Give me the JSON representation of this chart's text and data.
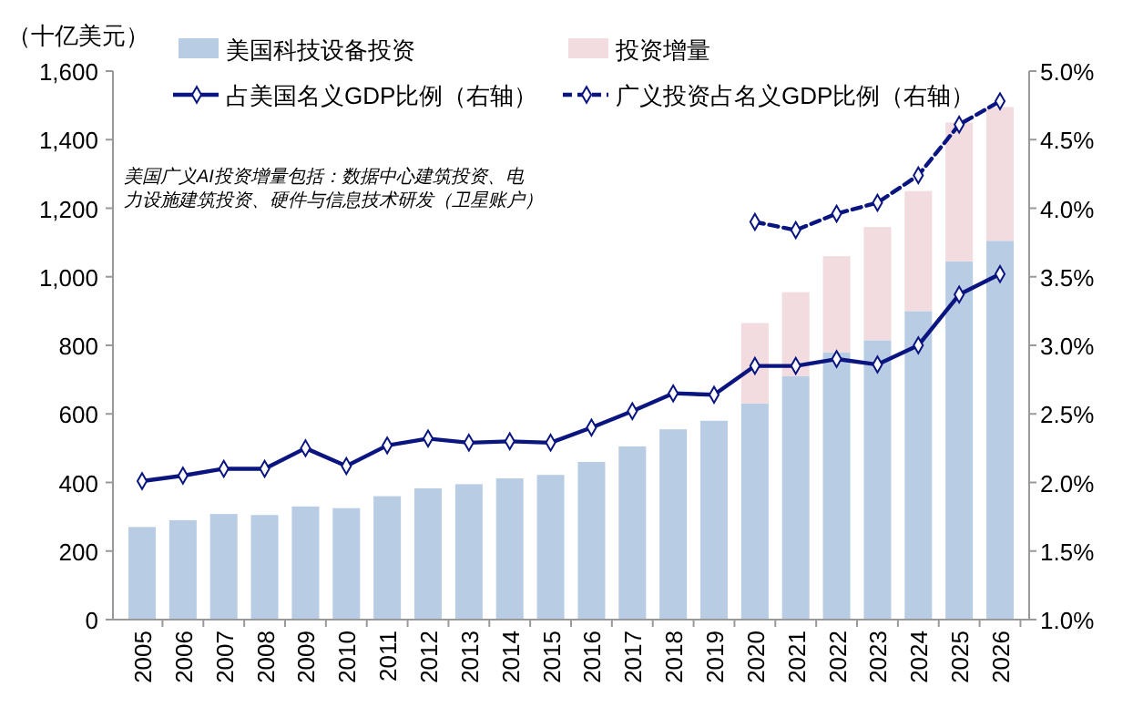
{
  "chart_data": {
    "type": "bar",
    "stacked": true,
    "ylabel": "（十亿美元）",
    "categories": [
      "2005",
      "2006",
      "2007",
      "2008",
      "2009",
      "2010",
      "2011",
      "2012",
      "2013",
      "2014",
      "2015",
      "2016",
      "2017",
      "2018",
      "2019",
      "2020",
      "2021",
      "2022",
      "2023",
      "2024",
      "2025",
      "2026"
    ],
    "series": [
      {
        "name": "美国科技设备投资",
        "color": "#b8cde4",
        "values": [
          270,
          290,
          308,
          305,
          330,
          325,
          360,
          383,
          395,
          412,
          422,
          460,
          505,
          555,
          580,
          630,
          710,
          780,
          815,
          900,
          1045,
          1105
        ]
      },
      {
        "name": "投资增量",
        "color": "#f2dcdf",
        "values": [
          null,
          null,
          null,
          null,
          null,
          null,
          null,
          null,
          null,
          null,
          null,
          null,
          null,
          null,
          null,
          235,
          245,
          280,
          330,
          350,
          405,
          390
        ]
      },
      {
        "name": "占美国名义GDP比例（右轴）",
        "type": "line",
        "axis": "y2",
        "color": "#0a1580",
        "line_style": "solid",
        "values": [
          2.01,
          2.05,
          2.1,
          2.1,
          2.25,
          2.12,
          2.27,
          2.32,
          2.29,
          2.3,
          2.29,
          2.4,
          2.52,
          2.65,
          2.64,
          2.85,
          2.85,
          2.9,
          2.86,
          3.0,
          3.37,
          3.52
        ]
      },
      {
        "name": "广义投资占名义GDP比例（右轴）",
        "type": "line",
        "axis": "y2",
        "color": "#0a1580",
        "line_style": "dashed",
        "values": [
          null,
          null,
          null,
          null,
          null,
          null,
          null,
          null,
          null,
          null,
          null,
          null,
          null,
          null,
          null,
          3.9,
          3.84,
          3.96,
          4.04,
          4.24,
          4.61,
          4.78
        ]
      }
    ],
    "ylim": [
      0,
      1600
    ],
    "yticks": [
      0,
      {
        "value": 200,
        "label": "200"
      },
      {
        "value": 400,
        "label": "400"
      },
      {
        "value": 600,
        "label": "600"
      },
      {
        "value": 800,
        "label": "800"
      },
      {
        "value": 1000,
        "label": "1,000"
      },
      {
        "value": 1200,
        "label": "1,200"
      },
      {
        "value": 1400,
        "label": "1,400"
      },
      {
        "value": 1600,
        "label": "1,600"
      }
    ],
    "y2lim": [
      1,
      5
    ],
    "y2ticks": [
      {
        "value": 1,
        "label": "1.0%"
      },
      {
        "value": 1.5,
        "label": "1.5%"
      },
      {
        "value": 2,
        "label": "2.0%"
      },
      {
        "value": 2.5,
        "label": "2.5%"
      },
      {
        "value": 3,
        "label": "3.0%"
      },
      {
        "value": 3.5,
        "label": "3.5%"
      },
      {
        "value": 4,
        "label": "4.0%"
      },
      {
        "value": 4.5,
        "label": "4.5%"
      },
      {
        "value": 5,
        "label": "5.0%"
      }
    ],
    "marker": "diamond",
    "legend": "top",
    "grid": false,
    "annotations": [
      "美国广义AI投资增量包括：数据中心建筑投资、电力设施建筑投资、硬件与信息技术研发（卫星账户）"
    ]
  }
}
